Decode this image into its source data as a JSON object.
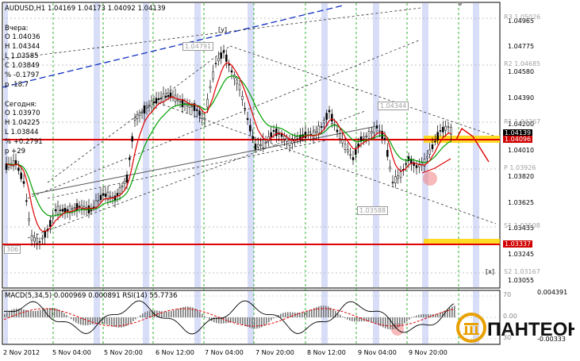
{
  "header": {
    "symbol_line": "AUDUSD,H1  1.04169 1.04173 1.04092 1.04139"
  },
  "yesterday": {
    "title": "Вчера:",
    "lines": [
      "O 1.04036",
      "H 1.04344",
      "L 1.03585",
      "C 1.03849",
      "% -0.1797",
      "p -18.7"
    ]
  },
  "today": {
    "title": "Сегодня:",
    "lines": [
      "O 1.03970",
      "H 1.04225",
      "L 1.03844",
      "% +0.2791",
      "p +29"
    ]
  },
  "price_axis": {
    "labels": [
      "1.04965",
      "1.04775",
      "1.04580",
      "1.04390",
      "1.04200",
      "1.04010",
      "1.03820",
      "1.03625",
      "1.03435",
      "1.03245",
      "1.03055"
    ],
    "current_price": "1.04139",
    "level_upper": "1.04096",
    "level_lower": "1.03337"
  },
  "pivots": {
    "r3": "R3 1.05026",
    "r2": "R2 1.04685",
    "r1": "R1 1.04267",
    "p": "P 1.03926",
    "s1": "S1 1.03508",
    "s2": "S2 1.03167"
  },
  "markers": {
    "high_tag": "1.04791",
    "high_mark": "[y]",
    "mid_tag": "1.04344",
    "low_tag": "1.03588",
    "left_low_tag": "306",
    "x_mark": "[x]"
  },
  "macd": {
    "label": "MACD(5,34,5) 0.000969 0.000891  RSI(14) 55.7736",
    "scale_top": "70",
    "scale_mid": "0.00",
    "scale_bottom": "30",
    "scale_top_value": "0.004391",
    "scale_bottom_value": "-0.00333"
  },
  "time_axis": [
    "2 Nov 2012",
    "5 Nov 04:00",
    "5 Nov 20:00",
    "6 Nov 12:00",
    "7 Nov 04:00",
    "7 Nov 20:00",
    "8 Nov 12:00",
    "9 Nov 04:00",
    "9 Nov 20:00"
  ],
  "logo": {
    "text": "ПАНТЕОН"
  },
  "colors": {
    "support_resistance": "#e00000",
    "highlight_zone": "#ffd700",
    "fast_ma": "#e00000",
    "slow_ma": "#00a000",
    "grid_v": "#00a000",
    "session_band": "#c8d0f4",
    "blue_channel": "#1030c0",
    "logo_gold": "#e8a000"
  }
}
